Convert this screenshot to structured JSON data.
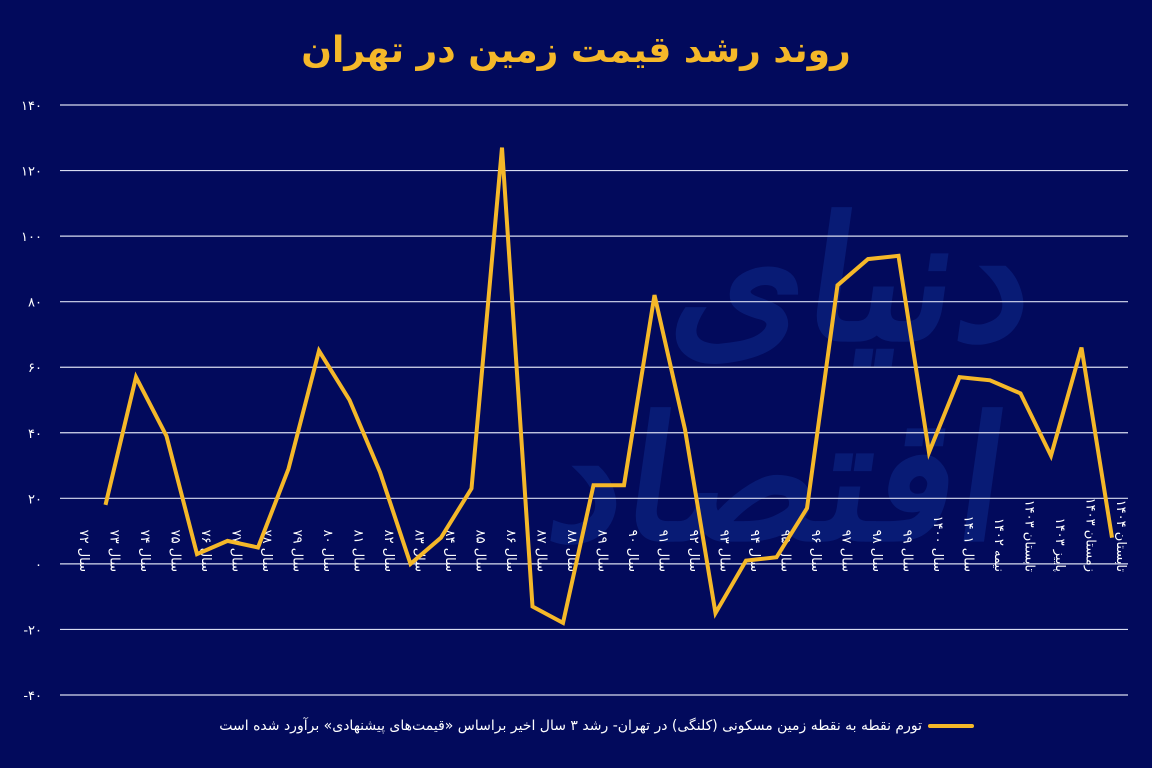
{
  "title": "روند رشد قیمت زمین در تهران",
  "watermark": "دنیای اقتصاد",
  "legend": {
    "label": "تورم نقطه به نقطه زمین مسکونی (کلنگی) در تهران- رشد ۳ سال اخیر براساس «قیمت‌های پیشنهادی» برآورد شده است",
    "color": "#f5b829"
  },
  "colors": {
    "background": "#020a5c",
    "line": "#f5b829",
    "grid": "#d8dcf0",
    "text": "#ffffff"
  },
  "chart_data": {
    "type": "line",
    "title": "روند رشد قیمت زمین در تهران",
    "xlabel": "",
    "ylabel": "",
    "ylim": [
      -40,
      140
    ],
    "yticks": [
      140,
      120,
      100,
      80,
      60,
      40,
      20,
      0,
      -20,
      -40
    ],
    "ytick_labels": [
      "۱۴۰",
      "۱۲۰",
      "۱۰۰",
      "۸۰",
      "۶۰",
      "۴۰",
      "۲۰",
      "۰",
      "-۲۰",
      "-۴۰"
    ],
    "grid": true,
    "legend_position": "bottom",
    "categories": [
      "سال ۷۲",
      "سال ۷۳",
      "سال ۷۴",
      "سال ۷۵",
      "سال ۷۶",
      "سال ۷۷",
      "سال ۷۸",
      "سال ۷۹",
      "سال ۸۰",
      "سال ۸۱",
      "سال ۸۲",
      "سال ۸۳",
      "سال ۸۴",
      "سال ۸۵",
      "سال ۸۶",
      "سال ۸۷",
      "سال ۸۸",
      "سال ۸۹",
      "سال ۹۰",
      "سال ۹۱",
      "سال ۹۲",
      "سال ۹۳",
      "سال ۹۴",
      "سال ۹۵",
      "سال ۹۶",
      "سال ۹۷",
      "سال ۹۸",
      "سال ۹۹",
      "سال ۱۴۰۰",
      "سال ۱۴۰۱",
      "نیمه ۱۴۰۲",
      "تابستان ۱۴۰۳",
      "پاییز ۱۴۰۳",
      "زمستان ۱۴۰۳",
      "تابستان ۱۴۰۴"
    ],
    "series": [
      {
        "name": "تورم نقطه به نقطه زمین مسکونی (کلنگی) در تهران",
        "values": [
          null,
          18,
          57,
          39,
          3,
          7,
          5,
          29,
          65,
          50,
          28,
          0,
          8,
          23,
          127,
          -13,
          -18,
          24,
          24,
          82,
          41,
          -15,
          1,
          2,
          17,
          85,
          93,
          94,
          34,
          57,
          56,
          52,
          33,
          66,
          8
        ]
      }
    ]
  }
}
